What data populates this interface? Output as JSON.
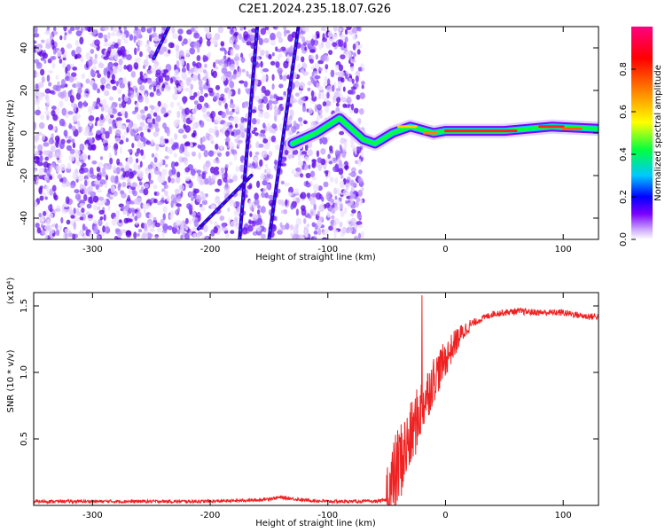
{
  "title": "C2E1.2024.235.18.07.G26",
  "chart_data": [
    {
      "type": "heatmap",
      "xlabel": "Height of straight line (km)",
      "ylabel": "Frequency (Hz)",
      "xlim": [
        -350,
        130
      ],
      "ylim": [
        -50,
        50
      ],
      "x_ticks": [
        -300,
        -200,
        -100,
        0,
        100
      ],
      "y_ticks": [
        -40,
        -20,
        0,
        20,
        40
      ],
      "colorbar": {
        "label": "Normalized spectral amplitude",
        "range": [
          0,
          1
        ],
        "ticks": [
          "0.0",
          "0.2",
          "0.4",
          "0.6",
          "0.8"
        ],
        "colormap": [
          "#ffffff",
          "#c8a0ff",
          "#7b00ff",
          "#0000ff",
          "#00c8ff",
          "#00ff40",
          "#ffff00",
          "#ff8000",
          "#ff0000",
          "#ff0080"
        ]
      },
      "noise_region_x": [
        -350,
        -70
      ],
      "streaks": [
        {
          "x": [
            -175,
            -160
          ],
          "y": [
            -50,
            50
          ]
        },
        {
          "x": [
            -150,
            -125
          ],
          "y": [
            -50,
            50
          ]
        },
        {
          "x": [
            -248,
            -235
          ],
          "y": [
            35,
            50
          ]
        },
        {
          "x": [
            -210,
            -165
          ],
          "y": [
            -45,
            -20
          ]
        }
      ],
      "signal_band": [
        {
          "x": -130,
          "y": -5
        },
        {
          "x": -110,
          "y": 0
        },
        {
          "x": -90,
          "y": 7
        },
        {
          "x": -70,
          "y": -3
        },
        {
          "x": -60,
          "y": -5
        },
        {
          "x": -45,
          "y": 0
        },
        {
          "x": -30,
          "y": 3
        },
        {
          "x": -10,
          "y": 0
        },
        {
          "x": 0,
          "y": 1
        },
        {
          "x": 50,
          "y": 1
        },
        {
          "x": 90,
          "y": 3
        },
        {
          "x": 130,
          "y": 2
        }
      ]
    },
    {
      "type": "line",
      "xlabel": "Height of straight line (km)",
      "ylabel": "SNR (10 * v/v)",
      "y_multiplier": "(x10⁴)",
      "xlim": [
        -350,
        130
      ],
      "ylim": [
        0,
        1.6
      ],
      "x_ticks": [
        -300,
        -200,
        -100,
        0,
        100
      ],
      "y_ticks": [
        0.5,
        1.0,
        1.5
      ],
      "color": "#ee2222",
      "x": [
        -350,
        -300,
        -250,
        -200,
        -160,
        -140,
        -120,
        -100,
        -80,
        -60,
        -50,
        -45,
        -40,
        -30,
        -20,
        -10,
        0,
        10,
        20,
        30,
        40,
        60,
        80,
        100,
        120,
        130
      ],
      "y": [
        0.03,
        0.03,
        0.03,
        0.03,
        0.04,
        0.06,
        0.04,
        0.03,
        0.03,
        0.03,
        0.04,
        0.15,
        0.3,
        0.5,
        0.75,
        0.95,
        1.1,
        1.25,
        1.35,
        1.4,
        1.44,
        1.46,
        1.45,
        1.45,
        1.42,
        1.42
      ],
      "spike": {
        "x": -20,
        "y": 1.58
      }
    }
  ]
}
